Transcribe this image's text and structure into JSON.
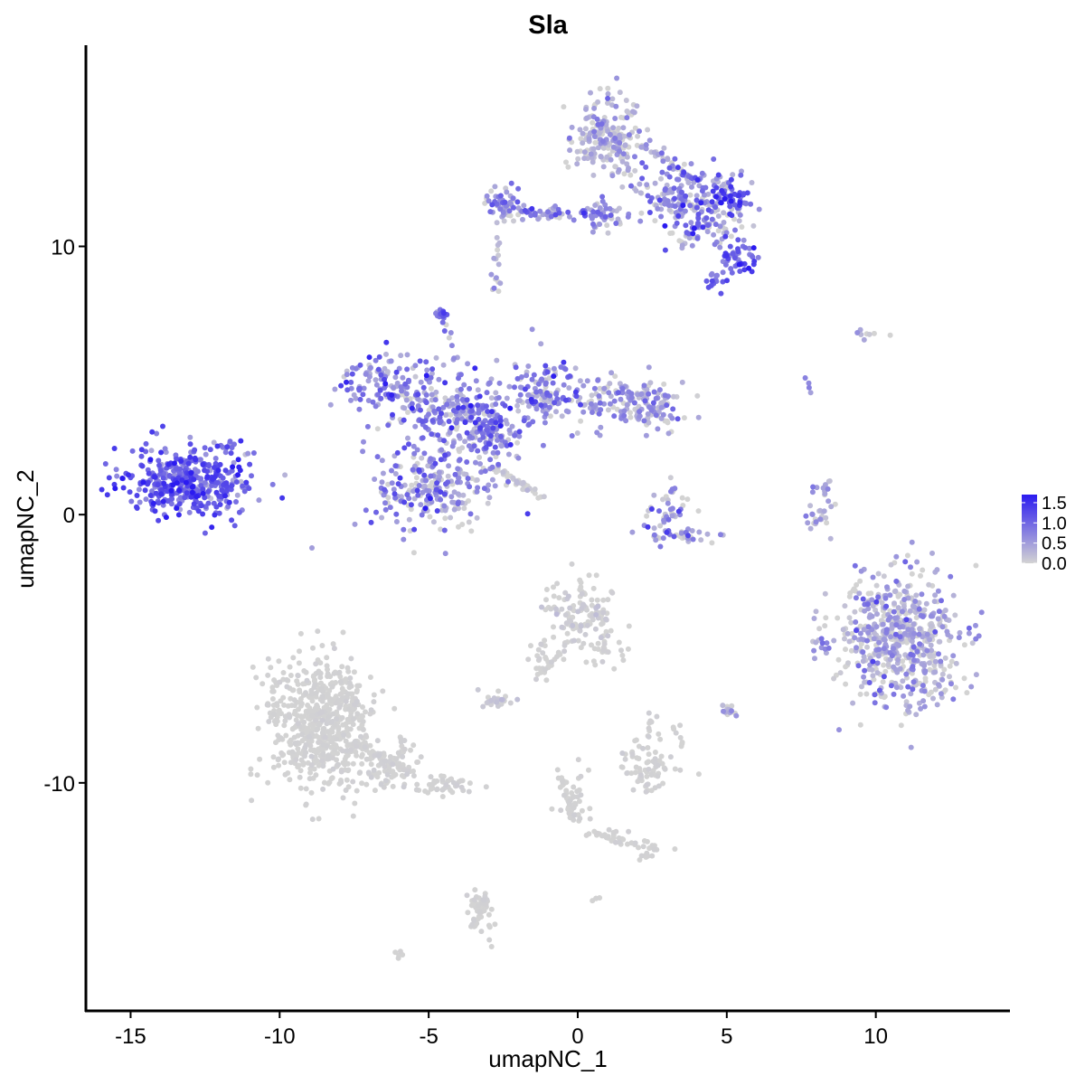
{
  "chart_data": {
    "type": "scatter",
    "title": "Sla",
    "xlabel": "umapNC_1",
    "ylabel": "umapNC_2",
    "xlim": [
      -16.5,
      14.5
    ],
    "ylim": [
      -18.5,
      17.5
    ],
    "x_ticks": [
      -15,
      -10,
      -5,
      0,
      5,
      10
    ],
    "x_tick_labels": [
      "-15",
      "-10",
      "-5",
      "0",
      "5",
      "10"
    ],
    "y_ticks": [
      10,
      0,
      -10
    ],
    "y_tick_labels": [
      "10",
      "0",
      "-10"
    ],
    "grid": false,
    "color_scale": {
      "low_color": "#d3d3d3",
      "high_color": "#2b1bf0",
      "min": 0,
      "max": 1.7,
      "breaks": [
        0.0,
        0.5,
        1.0,
        1.5
      ],
      "break_labels": [
        "0.0",
        "0.5",
        "1.0",
        "1.5"
      ],
      "legend_placement": "right"
    },
    "clusters": [
      {
        "cx": -13.0,
        "cy": 1.2,
        "sx": 1.05,
        "sy": 0.65,
        "n": 420,
        "mean": 1.05,
        "sd": 0.35
      },
      {
        "cx": -11.7,
        "cy": 2.4,
        "sx": 0.35,
        "sy": 0.25,
        "n": 15,
        "mean": 0.75,
        "sd": 0.3
      },
      {
        "cx": -6.3,
        "cy": 5.0,
        "sx": 0.8,
        "sy": 0.55,
        "n": 130,
        "mean": 0.7,
        "sd": 0.4
      },
      {
        "cx": -4.2,
        "cy": 3.8,
        "sx": 1.1,
        "sy": 0.7,
        "n": 180,
        "mean": 0.6,
        "sd": 0.45
      },
      {
        "cx": -5.0,
        "cy": 1.0,
        "sx": 1.0,
        "sy": 0.8,
        "n": 240,
        "mean": 0.55,
        "sd": 0.45
      },
      {
        "cx": -3.0,
        "cy": 2.8,
        "sx": 0.6,
        "sy": 0.6,
        "n": 120,
        "mean": 0.7,
        "sd": 0.4
      },
      {
        "cx": -1.2,
        "cy": 4.6,
        "sx": 0.55,
        "sy": 0.9,
        "n": 120,
        "mean": 0.6,
        "sd": 0.45
      },
      {
        "cx": 1.4,
        "cy": 4.2,
        "sx": 1.0,
        "sy": 0.5,
        "n": 140,
        "mean": 0.35,
        "sd": 0.4
      },
      {
        "cx": 2.6,
        "cy": 4.0,
        "sx": 0.35,
        "sy": 0.4,
        "n": 40,
        "mean": 0.5,
        "sd": 0.4
      },
      {
        "cx": -4.6,
        "cy": 7.4,
        "sx": 0.12,
        "sy": 0.12,
        "n": 18,
        "mean": 0.8,
        "sd": 0.3
      },
      {
        "cx": 1.0,
        "cy": 14.0,
        "sx": 0.6,
        "sy": 0.8,
        "n": 220,
        "mean": 0.2,
        "sd": 0.3
      },
      {
        "cx": 3.8,
        "cy": 11.8,
        "sx": 0.9,
        "sy": 0.6,
        "n": 180,
        "mean": 0.6,
        "sd": 0.45
      },
      {
        "cx": 5.1,
        "cy": 11.8,
        "sx": 0.35,
        "sy": 0.25,
        "n": 45,
        "mean": 1.2,
        "sd": 0.35
      },
      {
        "cx": 5.4,
        "cy": 9.6,
        "sx": 0.35,
        "sy": 0.25,
        "n": 45,
        "mean": 1.1,
        "sd": 0.35
      },
      {
        "cx": 4.6,
        "cy": 8.8,
        "sx": 0.2,
        "sy": 0.2,
        "n": 15,
        "mean": 1.0,
        "sd": 0.35
      },
      {
        "cx": 4.3,
        "cy": 10.6,
        "sx": 0.7,
        "sy": 0.4,
        "n": 60,
        "mean": 0.5,
        "sd": 0.45
      },
      {
        "cx": -2.6,
        "cy": 11.6,
        "sx": 0.3,
        "sy": 0.25,
        "n": 45,
        "mean": 0.4,
        "sd": 0.4
      },
      {
        "cx": -0.5,
        "cy": 11.2,
        "sx": 1.0,
        "sy": 0.15,
        "n": 50,
        "mean": 0.55,
        "sd": 0.4
      },
      {
        "cx": 0.9,
        "cy": 11.1,
        "sx": 0.35,
        "sy": 0.25,
        "n": 30,
        "mean": 0.4,
        "sd": 0.4
      },
      {
        "cx": -2.75,
        "cy": 8.7,
        "sx": 0.1,
        "sy": 0.2,
        "n": 8,
        "mean": 0.4,
        "sd": 0.4
      },
      {
        "cx": 3.1,
        "cy": 0.2,
        "sx": 0.4,
        "sy": 0.5,
        "n": 45,
        "mean": 0.4,
        "sd": 0.45
      },
      {
        "cx": 3.4,
        "cy": -0.8,
        "sx": 0.6,
        "sy": 0.15,
        "n": 30,
        "mean": 0.45,
        "sd": 0.45
      },
      {
        "cx": 8.1,
        "cy": 0.3,
        "sx": 0.25,
        "sy": 0.5,
        "n": 22,
        "mean": 0.2,
        "sd": 0.35
      },
      {
        "cx": 10.8,
        "cy": -4.6,
        "sx": 1.0,
        "sy": 1.2,
        "n": 600,
        "mean": 0.28,
        "sd": 0.38
      },
      {
        "cx": 8.1,
        "cy": -4.8,
        "sx": 0.15,
        "sy": 0.4,
        "n": 12,
        "mean": 0.5,
        "sd": 0.4
      },
      {
        "cx": 0.0,
        "cy": -3.7,
        "sx": 0.55,
        "sy": 0.6,
        "n": 120,
        "mean": 0.02,
        "sd": 0.08
      },
      {
        "cx": 1.0,
        "cy": -5.1,
        "sx": 0.3,
        "sy": 0.3,
        "n": 25,
        "mean": 0.0,
        "sd": 0.03
      },
      {
        "cx": -1.2,
        "cy": -5.3,
        "sx": 0.25,
        "sy": 0.35,
        "n": 18,
        "mean": 0.0,
        "sd": 0.03
      },
      {
        "cx": -2.6,
        "cy": -6.9,
        "sx": 0.25,
        "sy": 0.15,
        "n": 25,
        "mean": 0.05,
        "sd": 0.1
      },
      {
        "cx": -8.6,
        "cy": -7.8,
        "sx": 0.9,
        "sy": 1.2,
        "n": 600,
        "mean": 0.0,
        "sd": 0.02
      },
      {
        "cx": -6.3,
        "cy": -9.4,
        "sx": 0.6,
        "sy": 0.4,
        "n": 90,
        "mean": 0.0,
        "sd": 0.03
      },
      {
        "cx": -4.5,
        "cy": -10.2,
        "sx": 0.5,
        "sy": 0.2,
        "n": 40,
        "mean": 0.0,
        "sd": 0.03
      },
      {
        "cx": 2.3,
        "cy": -9.4,
        "sx": 0.5,
        "sy": 0.45,
        "n": 70,
        "mean": 0.0,
        "sd": 0.03
      },
      {
        "cx": 2.5,
        "cy": -7.8,
        "sx": 0.15,
        "sy": 0.35,
        "n": 10,
        "mean": 0.0,
        "sd": 0.03
      },
      {
        "cx": 5.0,
        "cy": -7.3,
        "sx": 0.15,
        "sy": 0.12,
        "n": 12,
        "mean": 0.2,
        "sd": 0.3
      },
      {
        "cx": -0.2,
        "cy": -10.5,
        "sx": 0.25,
        "sy": 0.6,
        "n": 35,
        "mean": 0.0,
        "sd": 0.02
      },
      {
        "cx": 2.3,
        "cy": -12.5,
        "sx": 0.3,
        "sy": 0.2,
        "n": 20,
        "mean": 0.0,
        "sd": 0.02
      },
      {
        "cx": 1.0,
        "cy": -11.9,
        "sx": 0.6,
        "sy": 0.15,
        "n": 10,
        "mean": 0.0,
        "sd": 0.02
      },
      {
        "cx": -3.3,
        "cy": -14.8,
        "sx": 0.2,
        "sy": 0.5,
        "n": 35,
        "mean": 0.0,
        "sd": 0.02
      },
      {
        "cx": -6.0,
        "cy": -16.3,
        "sx": 0.08,
        "sy": 0.08,
        "n": 5,
        "mean": 0.0,
        "sd": 0.02
      },
      {
        "cx": 0.6,
        "cy": -14.3,
        "sx": 0.06,
        "sy": 0.06,
        "n": 4,
        "mean": 0.0,
        "sd": 0.02
      },
      {
        "cx": 7.7,
        "cy": 4.8,
        "sx": 0.1,
        "sy": 0.2,
        "n": 4,
        "mean": 0.6,
        "sd": 0.4
      },
      {
        "cx": 9.3,
        "cy": 6.7,
        "sx": 0.5,
        "sy": 0.1,
        "n": 8,
        "mean": 0.2,
        "sd": 0.3
      }
    ],
    "streams": [
      {
        "from": [
          -4.4,
          7.0
        ],
        "to": [
          -3.6,
          3.6
        ],
        "n": 22,
        "mean": 0.6,
        "sd": 0.35
      },
      {
        "from": [
          -2.8,
          1.8
        ],
        "to": [
          -1.2,
          0.6
        ],
        "n": 35,
        "mean": 0.05,
        "sd": 0.1
      },
      {
        "from": [
          -2.5,
          11.4
        ],
        "to": [
          -2.8,
          9.3
        ],
        "n": 10,
        "mean": 0.1,
        "sd": 0.2
      },
      {
        "from": [
          0.2,
          -4.0
        ],
        "to": [
          -1.4,
          -6.3
        ],
        "n": 20,
        "mean": 0.0,
        "sd": 0.03
      },
      {
        "from": [
          -7.4,
          -8.5
        ],
        "to": [
          -5.6,
          -9.6
        ],
        "n": 40,
        "mean": 0.0,
        "sd": 0.03
      },
      {
        "from": [
          -0.6,
          -9.8
        ],
        "to": [
          0.0,
          -11.5
        ],
        "n": 25,
        "mean": 0.0,
        "sd": 0.02
      },
      {
        "from": [
          0.6,
          -11.9
        ],
        "to": [
          2.0,
          -12.4
        ],
        "n": 18,
        "mean": 0.0,
        "sd": 0.02
      },
      {
        "from": [
          -3.0,
          -14.0
        ],
        "to": [
          -3.5,
          -15.4
        ],
        "n": 20,
        "mean": 0.0,
        "sd": 0.02
      },
      {
        "from": [
          2.2,
          13.8
        ],
        "to": [
          3.8,
          12.5
        ],
        "n": 40,
        "mean": 0.35,
        "sd": 0.4
      },
      {
        "from": [
          -2.6,
          11.5
        ],
        "to": [
          -0.8,
          11.2
        ],
        "n": 25,
        "mean": 0.55,
        "sd": 0.4
      },
      {
        "from": [
          8.0,
          -0.5
        ],
        "to": [
          8.4,
          1.2
        ],
        "n": 14,
        "mean": 0.15,
        "sd": 0.3
      },
      {
        "from": [
          3.2,
          -7.8
        ],
        "to": [
          3.6,
          -9.0
        ],
        "n": 8,
        "mean": 0.0,
        "sd": 0.02
      }
    ]
  }
}
